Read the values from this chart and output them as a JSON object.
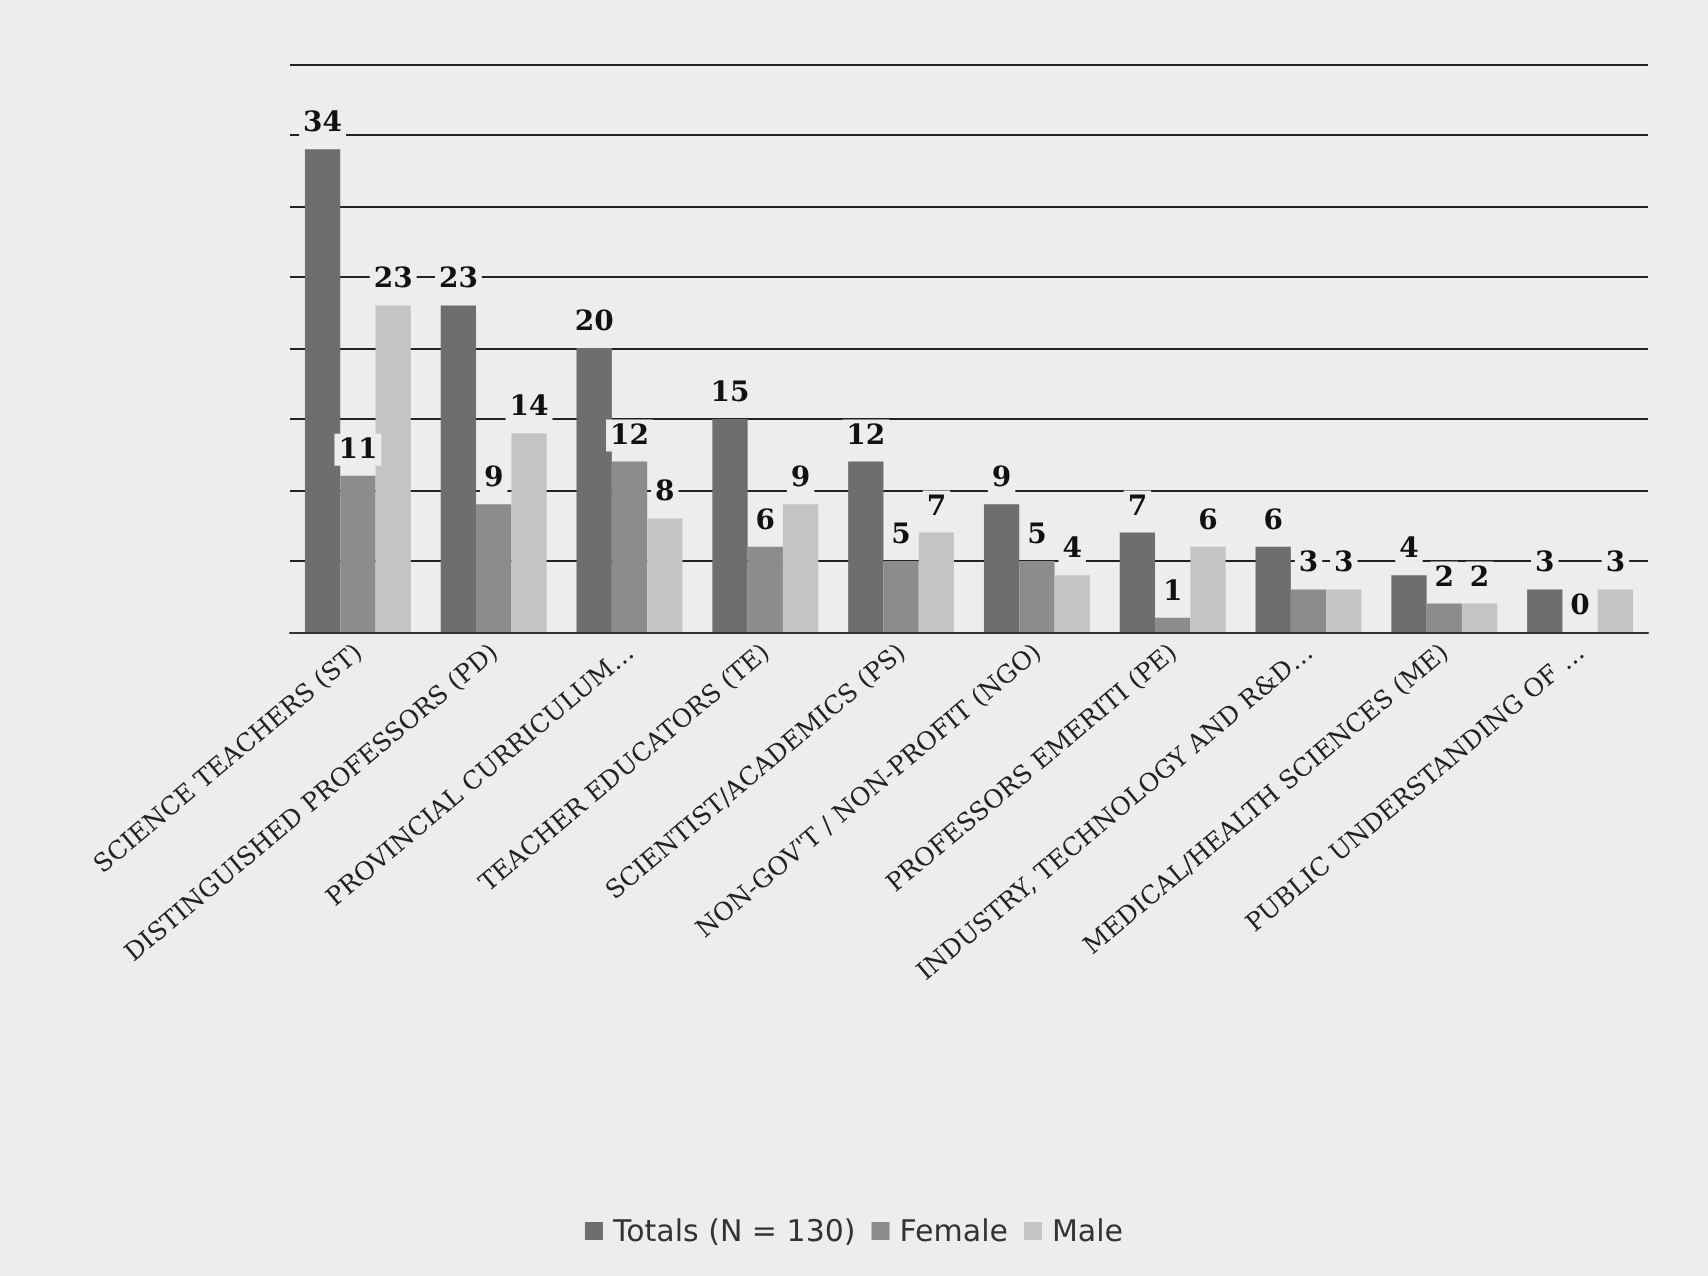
{
  "chart_data": {
    "type": "bar",
    "categories": [
      "SCIENCE TEACHERS (ST)",
      "DISTINGUISHED PROFESSORS (PD)",
      "PROVINCIAL CURRICULUM…",
      "TEACHER EDUCATORS (TE)",
      "SCIENTIST/ACADEMICS (PS)",
      "NON-GOV'T / NON-PROFIT (NGO)",
      "PROFESSORS EMERITI (PE)",
      "INDUSTRY, TECHNOLOGY AND R&D…",
      "MEDICAL/HEALTH SCIENCES (ME)",
      "PUBLIC UNDERSTANDING OF …"
    ],
    "series": [
      {
        "name": "Totals (N = 130)",
        "color": "#6e6e6e",
        "values": [
          34,
          23,
          20,
          15,
          12,
          9,
          7,
          6,
          4,
          3
        ]
      },
      {
        "name": "Female",
        "color": "#8c8c8c",
        "values": [
          11,
          9,
          12,
          6,
          5,
          5,
          1,
          3,
          2,
          0
        ]
      },
      {
        "name": "Male",
        "color": "#c4c4c4",
        "values": [
          23,
          14,
          8,
          9,
          7,
          4,
          6,
          3,
          2,
          3
        ]
      }
    ],
    "ylim": [
      0,
      40
    ],
    "yticks": [
      0,
      5,
      10,
      15,
      20,
      25,
      30,
      35,
      40
    ],
    "tick_labels": "x",
    "grid": "y",
    "legend": "bottom",
    "data_labels": true
  }
}
